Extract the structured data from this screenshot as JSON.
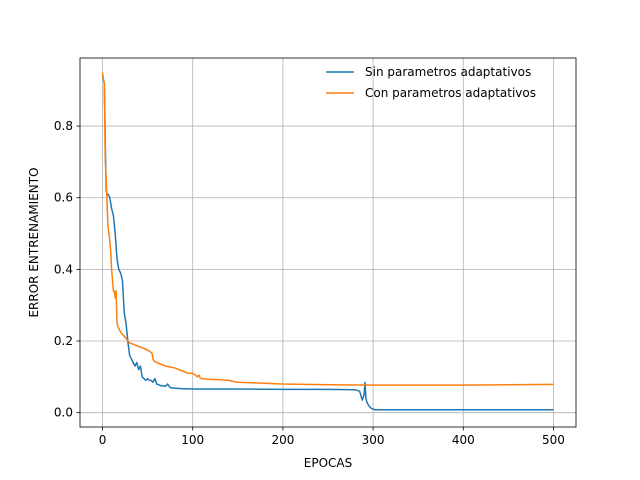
{
  "chart_data": {
    "type": "line",
    "title": "",
    "xlabel": "EPOCAS",
    "ylabel": "ERROR ENTRENAMIENTO",
    "xlim": [
      -25,
      525
    ],
    "ylim": [
      -0.04,
      0.99
    ],
    "xticks": [
      0,
      100,
      200,
      300,
      400,
      500
    ],
    "yticks": [
      0.0,
      0.2,
      0.4,
      0.6,
      0.8
    ],
    "xtick_labels": [
      "0",
      "100",
      "200",
      "300",
      "400",
      "500"
    ],
    "ytick_labels": [
      "0.0",
      "0.2",
      "0.4",
      "0.6",
      "0.8"
    ],
    "grid": true,
    "legend_position": "top-right",
    "series": [
      {
        "name": "Sin parametros adaptativos",
        "color": "#1f77b4",
        "x": [
          0,
          2,
          3,
          4,
          5,
          6,
          8,
          10,
          12,
          14,
          16,
          18,
          20,
          22,
          24,
          26,
          28,
          30,
          32,
          34,
          36,
          38,
          40,
          42,
          44,
          46,
          48,
          50,
          52,
          54,
          56,
          58,
          60,
          65,
          70,
          72,
          75,
          80,
          90,
          100,
          150,
          200,
          250,
          280,
          285,
          288,
          290,
          291,
          292,
          293,
          295,
          298,
          300,
          302,
          305,
          350,
          400,
          450,
          500
        ],
        "y": [
          0.94,
          0.92,
          0.75,
          0.62,
          0.61,
          0.61,
          0.6,
          0.57,
          0.55,
          0.5,
          0.43,
          0.4,
          0.39,
          0.37,
          0.28,
          0.25,
          0.2,
          0.16,
          0.15,
          0.14,
          0.13,
          0.14,
          0.12,
          0.13,
          0.1,
          0.095,
          0.09,
          0.095,
          0.09,
          0.09,
          0.085,
          0.095,
          0.08,
          0.075,
          0.074,
          0.08,
          0.07,
          0.068,
          0.067,
          0.066,
          0.066,
          0.065,
          0.065,
          0.064,
          0.06,
          0.035,
          0.05,
          0.085,
          0.04,
          0.03,
          0.02,
          0.012,
          0.01,
          0.008,
          0.008,
          0.008,
          0.008,
          0.008,
          0.008
        ]
      },
      {
        "name": "Con parametros adaptativos",
        "color": "#ff7f0e",
        "x": [
          0,
          1,
          2,
          3,
          4,
          5,
          6,
          7,
          8,
          9,
          10,
          12,
          13,
          14,
          15,
          16,
          17,
          18,
          20,
          25,
          30,
          35,
          40,
          45,
          50,
          53,
          55,
          56,
          57,
          60,
          70,
          80,
          90,
          95,
          100,
          103,
          105,
          107,
          108,
          110,
          120,
          130,
          140,
          145,
          150,
          200,
          250,
          300,
          400,
          450,
          500
        ],
        "y": [
          0.95,
          0.93,
          0.92,
          0.7,
          0.65,
          0.58,
          0.52,
          0.5,
          0.48,
          0.45,
          0.4,
          0.34,
          0.34,
          0.32,
          0.34,
          0.25,
          0.24,
          0.235,
          0.225,
          0.21,
          0.195,
          0.19,
          0.185,
          0.18,
          0.175,
          0.17,
          0.165,
          0.15,
          0.145,
          0.14,
          0.13,
          0.125,
          0.115,
          0.11,
          0.11,
          0.105,
          0.1,
          0.105,
          0.098,
          0.095,
          0.093,
          0.092,
          0.09,
          0.087,
          0.085,
          0.08,
          0.078,
          0.077,
          0.077,
          0.078,
          0.079
        ]
      }
    ]
  }
}
